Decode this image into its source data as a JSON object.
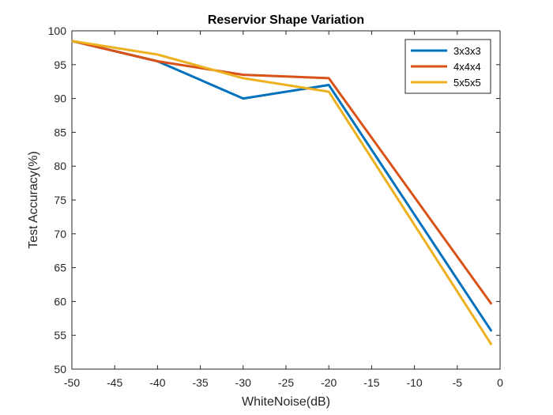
{
  "chart_data": {
    "type": "line",
    "title": "Reservior Shape Variation",
    "xlabel": "WhiteNoise(dB)",
    "ylabel": "Test Accuracy(%)",
    "xlim": [
      -50,
      0
    ],
    "ylim": [
      50,
      100
    ],
    "xticks": [
      -50,
      -45,
      -40,
      -35,
      -30,
      -25,
      -20,
      -15,
      -10,
      -5,
      0
    ],
    "yticks": [
      50,
      55,
      60,
      65,
      70,
      75,
      80,
      85,
      90,
      95,
      100
    ],
    "grid": false,
    "legend_position": "top-right",
    "x": [
      -50,
      -40,
      -30,
      -20,
      -1
    ],
    "series": [
      {
        "name": "3x3x3",
        "color": "#0072BD",
        "values": [
          98.5,
          95.5,
          90.0,
          92.0,
          55.6
        ]
      },
      {
        "name": "4x4x4",
        "color": "#D95319",
        "values": [
          98.5,
          95.5,
          93.5,
          93.0,
          59.6
        ]
      },
      {
        "name": "5x5x5",
        "color": "#EDB120",
        "values": [
          98.5,
          96.5,
          93.0,
          91.0,
          53.6
        ]
      }
    ]
  }
}
